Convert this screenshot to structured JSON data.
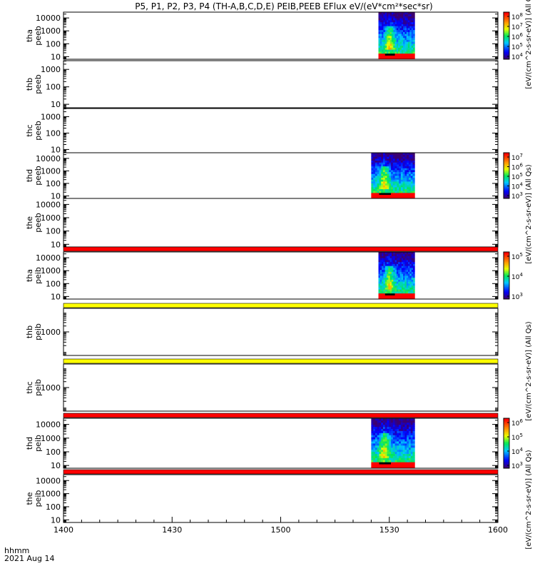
{
  "chart_data": {
    "type": "heatmap",
    "title": "P5, P1, P2, P3, P4 (TH-A,B,C,D,E) PEIB,PEEB EFlux eV/(eV*cm²*sec*sr)",
    "x_axis": {
      "range_label": [
        "1400",
        "1600"
      ],
      "tick_labels": [
        "1400",
        "1430",
        "1500",
        "1530",
        "1600"
      ],
      "tick_minutes": [
        0,
        30,
        60,
        90,
        120
      ],
      "format_label": "hhmm",
      "date_label": "2021 Aug 14"
    },
    "colors": {
      "dropout_red": "#ff0000",
      "dropout_yellow": "#ffff00",
      "frame": "#000000"
    },
    "panels": [
      {
        "probe": "tha",
        "instrument": "peeb",
        "ylabels": [
          "10000",
          "1000",
          "100",
          "10"
        ],
        "log_ymin": 0.8,
        "log_ymax": 4.45,
        "spectrogram": {
          "start_min": 87,
          "end_min": 97
        },
        "flag_bar": null,
        "colorbar": {
          "ticks": [
            {
              "base": "10",
              "exp": "8"
            },
            {
              "base": "10",
              "exp": "7"
            },
            {
              "base": "10",
              "exp": "6"
            },
            {
              "base": "10",
              "exp": "5"
            },
            {
              "base": "10",
              "exp": "4"
            }
          ]
        }
      },
      {
        "probe": "thb",
        "instrument": "peeb",
        "ylabels": [
          "1000",
          "100",
          "10"
        ],
        "log_ymin": 0.8,
        "log_ymax": 3.5,
        "spectrogram": null,
        "flag_bar": null,
        "colorbar": null
      },
      {
        "probe": "thc",
        "instrument": "peeb",
        "ylabels": [
          "1000",
          "100",
          "10"
        ],
        "log_ymin": 0.8,
        "log_ymax": 3.5,
        "spectrogram": null,
        "flag_bar": null,
        "colorbar": null
      },
      {
        "probe": "thd",
        "instrument": "peeb",
        "ylabels": [
          "10000",
          "1000",
          "100",
          "10"
        ],
        "log_ymin": 0.8,
        "log_ymax": 4.45,
        "spectrogram": {
          "start_min": 85,
          "end_min": 97
        },
        "flag_bar": null,
        "colorbar": {
          "ticks": [
            {
              "base": "10",
              "exp": "7"
            },
            {
              "base": "10",
              "exp": "6"
            },
            {
              "base": "10",
              "exp": "5"
            },
            {
              "base": "10",
              "exp": "4"
            },
            {
              "base": "10",
              "exp": "3"
            }
          ]
        }
      },
      {
        "probe": "the",
        "instrument": "peeb",
        "ylabels": [
          "10000",
          "1000",
          "100",
          "10"
        ],
        "log_ymin": 0.8,
        "log_ymax": 4.45,
        "spectrogram": null,
        "flag_bar": "#ff0000",
        "colorbar": null
      },
      {
        "probe": "tha",
        "instrument": "peib",
        "ylabels": [
          "10000",
          "1000",
          "100",
          "10"
        ],
        "log_ymin": 0.8,
        "log_ymax": 4.45,
        "spectrogram": {
          "start_min": 87,
          "end_min": 97
        },
        "flag_bar": "#ffff00",
        "colorbar": {
          "ticks": [
            {
              "base": "10",
              "exp": "5"
            },
            {
              "base": "10",
              "exp": "4"
            },
            {
              "base": "10",
              "exp": "3"
            }
          ]
        }
      },
      {
        "probe": "thb",
        "instrument": "peib",
        "ylabels": [
          "1000"
        ],
        "log_ymin": 1.8,
        "log_ymax": 4.2,
        "spectrogram": null,
        "flag_bar": "#ffff00",
        "colorbar": null
      },
      {
        "probe": "thc",
        "instrument": "peib",
        "ylabels": [
          "1000"
        ],
        "log_ymin": 1.8,
        "log_ymax": 4.2,
        "spectrogram": null,
        "flag_bar": "#ff0000",
        "colorbar": null
      },
      {
        "probe": "thd",
        "instrument": "peib",
        "ylabels": [
          "10000",
          "1000",
          "100",
          "10"
        ],
        "log_ymin": 0.8,
        "log_ymax": 4.45,
        "spectrogram": {
          "start_min": 85,
          "end_min": 97
        },
        "flag_bar": "#ff0000",
        "colorbar": {
          "ticks": [
            {
              "base": "10",
              "exp": "6"
            },
            {
              "base": "10",
              "exp": "5"
            },
            {
              "base": "10",
              "exp": "4"
            },
            {
              "base": "10",
              "exp": "3"
            }
          ]
        }
      },
      {
        "probe": "the",
        "instrument": "peib",
        "ylabels": [
          "10000",
          "1000",
          "100",
          "10"
        ],
        "log_ymin": 0.8,
        "log_ymax": 4.45,
        "spectrogram": null,
        "flag_bar": null,
        "colorbar": null
      }
    ],
    "colorbar_units": [
      "[eV/(cm^2-s-sr-eV)] (All Qs)",
      "[eV/(cm^2-s-sr-eV)] (All Qs)",
      "[eV/(cm^2-s-sr-eV)] (All Qs)",
      "[eV/(cm^2-s-sr-eV)] (All Qs)",
      "[eV/(cm^2-s-sr-eV)] (All Qs)"
    ]
  }
}
